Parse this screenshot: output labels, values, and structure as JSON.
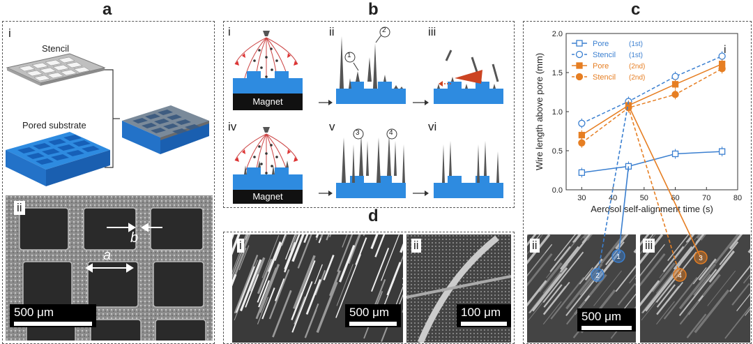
{
  "panels": {
    "a": {
      "label": "a",
      "sub_i": "i",
      "sub_ii": "ii",
      "stencil_label": "Stencil",
      "substrate_label": "Pored substrate",
      "dim_a": "a",
      "dim_b": "b",
      "scalebar": "500 μm"
    },
    "b": {
      "label": "b",
      "sub_i": "i",
      "sub_ii": "ii",
      "sub_iii": "iii",
      "sub_iv": "iv",
      "sub_v": "v",
      "sub_vi": "vi",
      "magnet": "Magnet",
      "c1": "1",
      "c2": "2",
      "c3": "3",
      "c4": "4"
    },
    "c": {
      "label": "c",
      "sub_i": "i",
      "sub_ii": "ii",
      "sub_iii": "iii",
      "scalebar": "500 μm",
      "marker1": "1",
      "marker2": "2",
      "marker3": "3",
      "marker4": "4"
    },
    "d": {
      "label": "d",
      "sub_i": "i",
      "sub_ii": "ii",
      "scalebar_i": "500 μm",
      "scalebar_ii": "100 μm"
    }
  },
  "chart_data": {
    "type": "line",
    "xlabel": "Aerosol self-alignment time (s)",
    "ylabel": "Wire length above pore (mm)",
    "xlim": [
      25,
      80
    ],
    "ylim": [
      0,
      2.0
    ],
    "xticks": [
      "30",
      "40",
      "50",
      "60",
      "70",
      "80"
    ],
    "yticks": [
      "0.0",
      "0.5",
      "1.0",
      "1.5",
      "2.0"
    ],
    "x": [
      30,
      45,
      60,
      75
    ],
    "legend_position": "top-left",
    "series": [
      {
        "name": "Pore",
        "sup": "1st",
        "color": "#3a7fd0",
        "marker": "open-square",
        "dashed": false,
        "values": [
          0.22,
          0.3,
          0.46,
          0.49
        ]
      },
      {
        "name": "Stencil",
        "sup": "1st",
        "color": "#3a7fd0",
        "marker": "open-circle",
        "dashed": true,
        "values": [
          0.85,
          1.13,
          1.45,
          1.71
        ]
      },
      {
        "name": "Pore",
        "sup": "2nd",
        "color": "#e67e22",
        "marker": "filled-square",
        "dashed": false,
        "values": [
          0.7,
          1.08,
          1.35,
          1.61
        ]
      },
      {
        "name": "Stencil",
        "sup": "2nd",
        "color": "#e67e22",
        "marker": "filled-circle",
        "dashed": true,
        "values": [
          0.6,
          1.05,
          1.22,
          1.55
        ]
      }
    ]
  }
}
